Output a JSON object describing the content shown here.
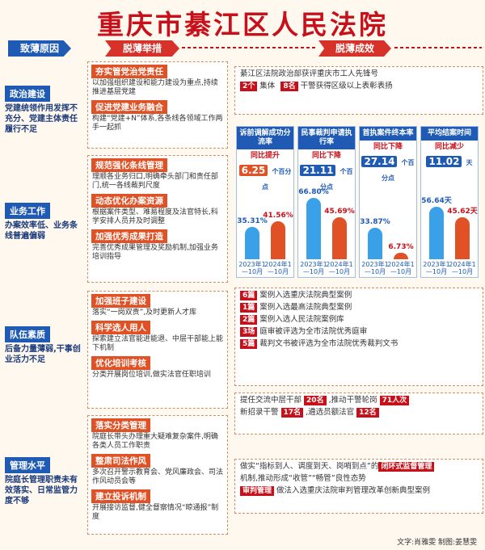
{
  "title": "重庆市綦江区人民法院",
  "headers": {
    "causes": "致薄原因",
    "measures": "脱薄举措",
    "results": "脱薄成效"
  },
  "causes": [
    {
      "label": "政治建设",
      "text": "党建统领作用发挥不充分、党建主体责任履行不足"
    },
    {
      "label": "业务工作",
      "text": "办案效率低、业务条线普遍偏弱"
    },
    {
      "label": "队伍素质",
      "text": "后备力量薄弱,干事创业活力不足"
    },
    {
      "label": "管理水平",
      "text": "院庭长管理职责未有效落实、日常监管力度不够"
    }
  ],
  "measures": [
    {
      "items": [
        {
          "h": "夯实管党治党责任",
          "t": "以加强组织建设和能力建设为重点,持续推进基层党建"
        },
        {
          "h": "促进党建业务融合",
          "t": "构建“党建+N”体系,各条线各领域工作两手一起抓"
        }
      ]
    },
    {
      "items": [
        {
          "h": "规范强化条线管理",
          "t": "理顺各业务归口,明确牵头部门和责任部门,统一各线裁判尺度"
        },
        {
          "h": "动态优化办案资源",
          "t": "根据案件类型、难易程度及法官特长,科学安排人员并及时调整"
        },
        {
          "h": "加强优秀成果打造",
          "t": "完善优秀成果管理及奖励机制,加强业务培训指导"
        }
      ]
    },
    {
      "items": [
        {
          "h": "加强班子建设",
          "t": "落实“一岗双责”,及时更新人才库"
        },
        {
          "h": "科学选人用人",
          "t": "探索建立法官能进能退、中层干部能上能下机制"
        },
        {
          "h": "优化培训考核",
          "t": "分类开展岗位培训,做实法官任职培训"
        }
      ]
    },
    {
      "items": [
        {
          "h": "落实分类管理",
          "t": "院庭长带头办理重大疑难复杂案件,明确各类人员工作职责"
        },
        {
          "h": "整肃司法作风",
          "t": "多次召开警示教育会、党风廉政会、司法作风动员会等"
        },
        {
          "h": "建立投诉机制",
          "t": "开展接访监督,健全督察情况“晾通报”制度"
        }
      ]
    }
  ],
  "results": {
    "political": {
      "text1": "綦江区法院政治部获评重庆市工人先锋号",
      "n1": "2个",
      "t1": "集体",
      "n2": "8名",
      "t2": "干警获得区级以上表彰表扬"
    },
    "charts": [
      {
        "title": "诉前调解成功分流率",
        "change": "同比提升",
        "delta": "6.25",
        "unit": "个百分点",
        "v2023": "35.31%",
        "v2024": "41.56%",
        "y1": "2023年1—10月",
        "y2": "2024年1—10月"
      },
      {
        "title": "民事裁判申请执行率",
        "change": "同比下降",
        "delta": "21.11",
        "unit": "个百分点",
        "v2023": "66.80%",
        "v2024": "45.69%",
        "y1": "2023年1—10月",
        "y2": "2024年1—10月"
      },
      {
        "title": "首执案件终本率",
        "change": "同比下降",
        "delta": "27.14",
        "unit": "个百分点",
        "v2023": "33.87%",
        "v2024": "6.73%",
        "y1": "2023年1—10月",
        "y2": "2024年1—10月"
      },
      {
        "title": "平均结案时间",
        "change": "同比减少",
        "delta": "11.02",
        "unit": "天",
        "v2023": "56.64天",
        "v2024": "45.62天",
        "y1": "2023年1—10月",
        "y2": "2024年1—10月"
      }
    ],
    "chart_values": [
      [
        35.31,
        41.56
      ],
      [
        66.8,
        45.69
      ],
      [
        33.87,
        6.73
      ],
      [
        56.64,
        45.62
      ]
    ],
    "honors": [
      {
        "n": "6篇",
        "t": "案例入选重庆法院典型案例"
      },
      {
        "n": "1篇",
        "t": "案例入选最高法院典型案例"
      },
      {
        "n": "2篇",
        "t": "案例入选人民法院案例库"
      },
      {
        "n": "3场",
        "t": "庭审被评选为全市法院优秀庭审"
      },
      {
        "n": "5篇",
        "t": "裁判文书被评选为全市法院优秀裁判文书"
      }
    ],
    "team": {
      "a": "提任交流中层干部",
      "b": "20名",
      "c": ",推动干警轮岗",
      "d": "71人次",
      "e": "新招录干警",
      "f": "17名",
      "g": ",遴选员额法官",
      "h": "12名"
    },
    "mgmt": {
      "a": "做实“指标到人、调度到天、岗哨到点”的",
      "b": "闭环式监督管理",
      "c": "机制,推动形成“收管”“畅管”良性态势",
      "d": "审判管理",
      "e": "做法入选重庆法院审判管理改革创新典型案例"
    }
  },
  "credit": "文字:肖雅雯  制图:姜慧雯",
  "colors": {
    "red": "#c8101a",
    "blue": "#1f5bb4",
    "orange": "#e05226"
  }
}
